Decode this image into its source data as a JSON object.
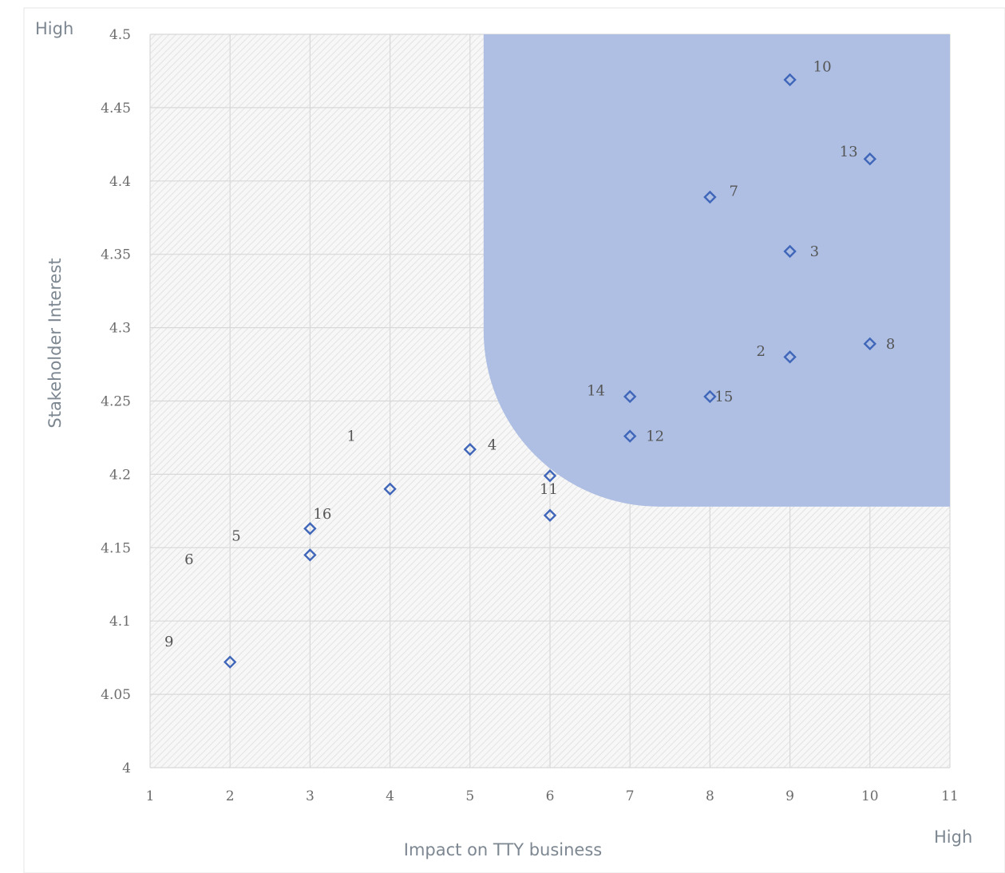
{
  "corner_labels": {
    "y_high": "High",
    "x_high": "High"
  },
  "colors": {
    "highlight": "#aebfe3",
    "marker": "#3f66b9",
    "grid": "#d8d8d8",
    "hatch": "#e3e3e3"
  },
  "chart_data": {
    "type": "scatter",
    "xlabel": "Impact on TTY business",
    "ylabel": "Stakeholder Interest",
    "xlim": [
      1,
      11
    ],
    "ylim": [
      4,
      4.5
    ],
    "xticks": [
      "1",
      "2",
      "3",
      "4",
      "5",
      "6",
      "7",
      "8",
      "9",
      "10",
      "11"
    ],
    "yticks": [
      "4",
      "4.05",
      "4.1",
      "4.15",
      "4.2",
      "4.25",
      "4.3",
      "4.35",
      "4.4",
      "4.45",
      "4.5"
    ],
    "grid": true,
    "highlight_region": {
      "x_min": 5.17,
      "x_max": 11,
      "y_min": 4.178,
      "y_max": 4.5,
      "rounded_corner": "bottom-left"
    },
    "points": [
      {
        "x": 2,
        "y": 4.072
      },
      {
        "x": 3,
        "y": 4.145
      },
      {
        "x": 3,
        "y": 4.163
      },
      {
        "x": 4,
        "y": 4.19
      },
      {
        "x": 5,
        "y": 4.217
      },
      {
        "x": 6,
        "y": 4.172
      },
      {
        "x": 6,
        "y": 4.199
      },
      {
        "x": 7,
        "y": 4.253
      },
      {
        "x": 7,
        "y": 4.226
      },
      {
        "x": 8,
        "y": 4.389
      },
      {
        "x": 8,
        "y": 4.253
      },
      {
        "x": 9,
        "y": 4.469
      },
      {
        "x": 9,
        "y": 4.352
      },
      {
        "x": 9,
        "y": 4.28
      },
      {
        "x": 10,
        "y": 4.415
      },
      {
        "x": 10,
        "y": 4.289
      }
    ],
    "annotations": [
      {
        "text": "10",
        "x": 9.29,
        "y": 4.478
      },
      {
        "text": "13",
        "x": 9.62,
        "y": 4.42
      },
      {
        "text": "7",
        "x": 8.24,
        "y": 4.393
      },
      {
        "text": "3",
        "x": 9.25,
        "y": 4.352
      },
      {
        "text": "2",
        "x": 8.58,
        "y": 4.284
      },
      {
        "text": "8",
        "x": 10.2,
        "y": 4.289
      },
      {
        "text": "14",
        "x": 6.46,
        "y": 4.257
      },
      {
        "text": "15",
        "x": 8.06,
        "y": 4.253
      },
      {
        "text": "12",
        "x": 7.2,
        "y": 4.226
      },
      {
        "text": "1",
        "x": 3.46,
        "y": 4.226
      },
      {
        "text": "4",
        "x": 5.22,
        "y": 4.22
      },
      {
        "text": "11",
        "x": 5.87,
        "y": 4.19
      },
      {
        "text": "16",
        "x": 3.04,
        "y": 4.173
      },
      {
        "text": "5",
        "x": 2.02,
        "y": 4.158
      },
      {
        "text": "6",
        "x": 1.43,
        "y": 4.142
      },
      {
        "text": "9",
        "x": 1.18,
        "y": 4.086
      }
    ]
  }
}
